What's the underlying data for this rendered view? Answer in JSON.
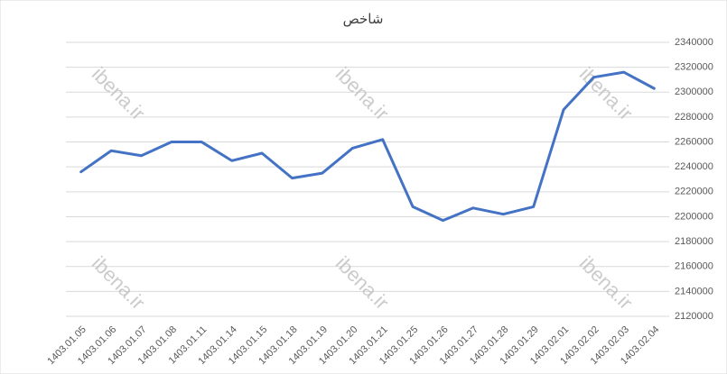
{
  "chart_data": {
    "type": "line",
    "title": "شاخص",
    "watermark": "ibena.ir",
    "categories": [
      "1403.01.05",
      "1403.01.06",
      "1403.01.07",
      "1403.01.08",
      "1403.01.11",
      "1403.01.14",
      "1403.01.15",
      "1403.01.18",
      "1403.01.19",
      "1403.01.20",
      "1403.01.21",
      "1403.01.25",
      "1403.01.26",
      "1403.01.27",
      "1403.01.28",
      "1403.01.29",
      "1403.02.01",
      "1403.02.02",
      "1403.02.03",
      "1403.02.04"
    ],
    "series": [
      {
        "name": "شاخص",
        "color": "#4472c4",
        "values": [
          2236000,
          2253000,
          2249000,
          2260000,
          2260000,
          2245000,
          2251000,
          2231000,
          2235000,
          2255000,
          2262000,
          2208000,
          2197000,
          2207000,
          2202000,
          2208000,
          2286000,
          2312000,
          2316000,
          2303000
        ]
      }
    ],
    "ylim": [
      2120000,
      2340000
    ],
    "yticks": [
      2120000,
      2140000,
      2160000,
      2180000,
      2200000,
      2220000,
      2240000,
      2260000,
      2280000,
      2300000,
      2320000,
      2340000
    ],
    "grid": true
  }
}
